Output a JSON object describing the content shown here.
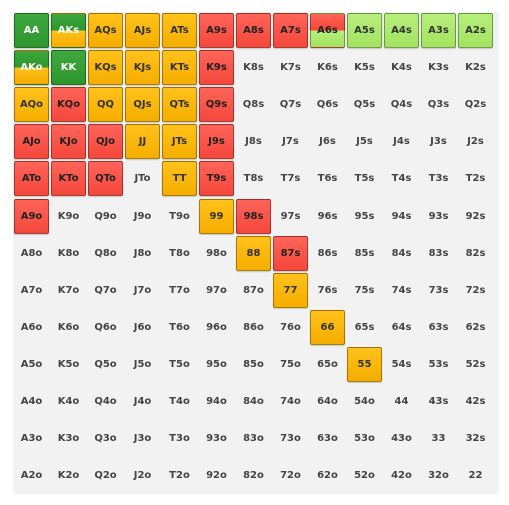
{
  "ranks": [
    "A",
    "K",
    "Q",
    "J",
    "T",
    "9",
    "8",
    "7",
    "6",
    "5",
    "4",
    "3",
    "2"
  ],
  "colors": {
    "green": "#2d962d",
    "orange": "#f5ad00",
    "red": "#f5473b",
    "lime": "#a2e35f",
    "grid_background": "#f2f2f2"
  },
  "rows": [
    [
      {
        "t": "AA",
        "c": "green"
      },
      {
        "t": "AKs",
        "c": "green-orange"
      },
      {
        "t": "AQs",
        "c": "orange"
      },
      {
        "t": "AJs",
        "c": "orange"
      },
      {
        "t": "ATs",
        "c": "orange"
      },
      {
        "t": "A9s",
        "c": "red"
      },
      {
        "t": "A8s",
        "c": "red"
      },
      {
        "t": "A7s",
        "c": "red"
      },
      {
        "t": "A6s",
        "c": "red-lime"
      },
      {
        "t": "A5s",
        "c": "lime"
      },
      {
        "t": "A4s",
        "c": "lime"
      },
      {
        "t": "A3s",
        "c": "lime"
      },
      {
        "t": "A2s",
        "c": "lime"
      }
    ],
    [
      {
        "t": "AKo",
        "c": "green-orange"
      },
      {
        "t": "KK",
        "c": "green"
      },
      {
        "t": "KQs",
        "c": "orange"
      },
      {
        "t": "KJs",
        "c": "orange"
      },
      {
        "t": "KTs",
        "c": "orange"
      },
      {
        "t": "K9s",
        "c": "red"
      },
      {
        "t": "K8s",
        "c": ""
      },
      {
        "t": "K7s",
        "c": ""
      },
      {
        "t": "K6s",
        "c": ""
      },
      {
        "t": "K5s",
        "c": ""
      },
      {
        "t": "K4s",
        "c": ""
      },
      {
        "t": "K3s",
        "c": ""
      },
      {
        "t": "K2s",
        "c": ""
      }
    ],
    [
      {
        "t": "AQo",
        "c": "orange"
      },
      {
        "t": "KQo",
        "c": "red"
      },
      {
        "t": "QQ",
        "c": "orange"
      },
      {
        "t": "QJs",
        "c": "orange"
      },
      {
        "t": "QTs",
        "c": "orange"
      },
      {
        "t": "Q9s",
        "c": "red"
      },
      {
        "t": "Q8s",
        "c": ""
      },
      {
        "t": "Q7s",
        "c": ""
      },
      {
        "t": "Q6s",
        "c": ""
      },
      {
        "t": "Q5s",
        "c": ""
      },
      {
        "t": "Q4s",
        "c": ""
      },
      {
        "t": "Q3s",
        "c": ""
      },
      {
        "t": "Q2s",
        "c": ""
      }
    ],
    [
      {
        "t": "AJo",
        "c": "red"
      },
      {
        "t": "KJo",
        "c": "red"
      },
      {
        "t": "QJo",
        "c": "red"
      },
      {
        "t": "JJ",
        "c": "orange"
      },
      {
        "t": "JTs",
        "c": "orange"
      },
      {
        "t": "J9s",
        "c": "red"
      },
      {
        "t": "J8s",
        "c": ""
      },
      {
        "t": "J7s",
        "c": ""
      },
      {
        "t": "J6s",
        "c": ""
      },
      {
        "t": "J5s",
        "c": ""
      },
      {
        "t": "J4s",
        "c": ""
      },
      {
        "t": "J3s",
        "c": ""
      },
      {
        "t": "J2s",
        "c": ""
      }
    ],
    [
      {
        "t": "ATo",
        "c": "red"
      },
      {
        "t": "KTo",
        "c": "red"
      },
      {
        "t": "QTo",
        "c": "red"
      },
      {
        "t": "JTo",
        "c": ""
      },
      {
        "t": "TT",
        "c": "orange"
      },
      {
        "t": "T9s",
        "c": "red"
      },
      {
        "t": "T8s",
        "c": ""
      },
      {
        "t": "T7s",
        "c": ""
      },
      {
        "t": "T6s",
        "c": ""
      },
      {
        "t": "T5s",
        "c": ""
      },
      {
        "t": "T4s",
        "c": ""
      },
      {
        "t": "T3s",
        "c": ""
      },
      {
        "t": "T2s",
        "c": ""
      }
    ],
    [
      {
        "t": "A9o",
        "c": "red"
      },
      {
        "t": "K9o",
        "c": ""
      },
      {
        "t": "Q9o",
        "c": ""
      },
      {
        "t": "J9o",
        "c": ""
      },
      {
        "t": "T9o",
        "c": ""
      },
      {
        "t": "99",
        "c": "orange"
      },
      {
        "t": "98s",
        "c": "red"
      },
      {
        "t": "97s",
        "c": ""
      },
      {
        "t": "96s",
        "c": ""
      },
      {
        "t": "95s",
        "c": ""
      },
      {
        "t": "94s",
        "c": ""
      },
      {
        "t": "93s",
        "c": ""
      },
      {
        "t": "92s",
        "c": ""
      }
    ],
    [
      {
        "t": "A8o",
        "c": ""
      },
      {
        "t": "K8o",
        "c": ""
      },
      {
        "t": "Q8o",
        "c": ""
      },
      {
        "t": "J8o",
        "c": ""
      },
      {
        "t": "T8o",
        "c": ""
      },
      {
        "t": "98o",
        "c": ""
      },
      {
        "t": "88",
        "c": "orange"
      },
      {
        "t": "87s",
        "c": "red"
      },
      {
        "t": "86s",
        "c": ""
      },
      {
        "t": "85s",
        "c": ""
      },
      {
        "t": "84s",
        "c": ""
      },
      {
        "t": "83s",
        "c": ""
      },
      {
        "t": "82s",
        "c": ""
      }
    ],
    [
      {
        "t": "A7o",
        "c": ""
      },
      {
        "t": "K7o",
        "c": ""
      },
      {
        "t": "Q7o",
        "c": ""
      },
      {
        "t": "J7o",
        "c": ""
      },
      {
        "t": "T7o",
        "c": ""
      },
      {
        "t": "97o",
        "c": ""
      },
      {
        "t": "87o",
        "c": ""
      },
      {
        "t": "77",
        "c": "orange"
      },
      {
        "t": "76s",
        "c": ""
      },
      {
        "t": "75s",
        "c": ""
      },
      {
        "t": "74s",
        "c": ""
      },
      {
        "t": "73s",
        "c": ""
      },
      {
        "t": "72s",
        "c": ""
      }
    ],
    [
      {
        "t": "A6o",
        "c": ""
      },
      {
        "t": "K6o",
        "c": ""
      },
      {
        "t": "Q6o",
        "c": ""
      },
      {
        "t": "J6o",
        "c": ""
      },
      {
        "t": "T6o",
        "c": ""
      },
      {
        "t": "96o",
        "c": ""
      },
      {
        "t": "86o",
        "c": ""
      },
      {
        "t": "76o",
        "c": ""
      },
      {
        "t": "66",
        "c": "orange"
      },
      {
        "t": "65s",
        "c": ""
      },
      {
        "t": "64s",
        "c": ""
      },
      {
        "t": "63s",
        "c": ""
      },
      {
        "t": "62s",
        "c": ""
      }
    ],
    [
      {
        "t": "A5o",
        "c": ""
      },
      {
        "t": "K5o",
        "c": ""
      },
      {
        "t": "Q5o",
        "c": ""
      },
      {
        "t": "J5o",
        "c": ""
      },
      {
        "t": "T5o",
        "c": ""
      },
      {
        "t": "95o",
        "c": ""
      },
      {
        "t": "85o",
        "c": ""
      },
      {
        "t": "75o",
        "c": ""
      },
      {
        "t": "65o",
        "c": ""
      },
      {
        "t": "55",
        "c": "orange"
      },
      {
        "t": "54s",
        "c": ""
      },
      {
        "t": "53s",
        "c": ""
      },
      {
        "t": "52s",
        "c": ""
      }
    ],
    [
      {
        "t": "A4o",
        "c": ""
      },
      {
        "t": "K4o",
        "c": ""
      },
      {
        "t": "Q4o",
        "c": ""
      },
      {
        "t": "J4o",
        "c": ""
      },
      {
        "t": "T4o",
        "c": ""
      },
      {
        "t": "94o",
        "c": ""
      },
      {
        "t": "84o",
        "c": ""
      },
      {
        "t": "74o",
        "c": ""
      },
      {
        "t": "64o",
        "c": ""
      },
      {
        "t": "54o",
        "c": ""
      },
      {
        "t": "44",
        "c": ""
      },
      {
        "t": "43s",
        "c": ""
      },
      {
        "t": "42s",
        "c": ""
      }
    ],
    [
      {
        "t": "A3o",
        "c": ""
      },
      {
        "t": "K3o",
        "c": ""
      },
      {
        "t": "Q3o",
        "c": ""
      },
      {
        "t": "J3o",
        "c": ""
      },
      {
        "t": "T3o",
        "c": ""
      },
      {
        "t": "93o",
        "c": ""
      },
      {
        "t": "83o",
        "c": ""
      },
      {
        "t": "73o",
        "c": ""
      },
      {
        "t": "63o",
        "c": ""
      },
      {
        "t": "53o",
        "c": ""
      },
      {
        "t": "43o",
        "c": ""
      },
      {
        "t": "33",
        "c": ""
      },
      {
        "t": "32s",
        "c": ""
      }
    ],
    [
      {
        "t": "A2o",
        "c": ""
      },
      {
        "t": "K2o",
        "c": ""
      },
      {
        "t": "Q2o",
        "c": ""
      },
      {
        "t": "J2o",
        "c": ""
      },
      {
        "t": "T2o",
        "c": ""
      },
      {
        "t": "92o",
        "c": ""
      },
      {
        "t": "82o",
        "c": ""
      },
      {
        "t": "72o",
        "c": ""
      },
      {
        "t": "62o",
        "c": ""
      },
      {
        "t": "52o",
        "c": ""
      },
      {
        "t": "42o",
        "c": ""
      },
      {
        "t": "32o",
        "c": ""
      },
      {
        "t": "22",
        "c": ""
      }
    ]
  ]
}
